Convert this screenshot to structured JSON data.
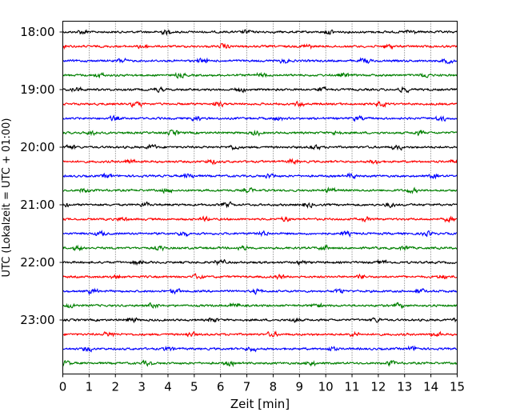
{
  "chart_data": {
    "type": "line",
    "title": "",
    "xlabel": "Zeit  [min]",
    "ylabel": "UTC (Lokalzeit = UTC + 01:00)",
    "xlim": [
      0,
      15
    ],
    "x_ticks": [
      "0",
      "1",
      "2",
      "3",
      "4",
      "5",
      "6",
      "7",
      "8",
      "9",
      "10",
      "11",
      "12",
      "13",
      "14",
      "15"
    ],
    "y_ticks": [
      "18:00",
      "19:00",
      "20:00",
      "21:00",
      "22:00",
      "23:00"
    ],
    "grid": "vertical dotted at each minute",
    "legend": "none",
    "trace_color_cycle": [
      "#000000",
      "#ff0000",
      "#0000ff",
      "#008000"
    ],
    "traces": [
      {
        "start": "18:00",
        "color": "#000000"
      },
      {
        "start": "18:15",
        "color": "#ff0000"
      },
      {
        "start": "18:30",
        "color": "#0000ff"
      },
      {
        "start": "18:45",
        "color": "#008000"
      },
      {
        "start": "19:00",
        "color": "#000000"
      },
      {
        "start": "19:15",
        "color": "#ff0000"
      },
      {
        "start": "19:30",
        "color": "#0000ff"
      },
      {
        "start": "19:45",
        "color": "#008000"
      },
      {
        "start": "20:00",
        "color": "#000000"
      },
      {
        "start": "20:15",
        "color": "#ff0000"
      },
      {
        "start": "20:30",
        "color": "#0000ff"
      },
      {
        "start": "20:45",
        "color": "#008000"
      },
      {
        "start": "21:00",
        "color": "#000000"
      },
      {
        "start": "21:15",
        "color": "#ff0000"
      },
      {
        "start": "21:30",
        "color": "#0000ff"
      },
      {
        "start": "21:45",
        "color": "#008000"
      },
      {
        "start": "22:00",
        "color": "#000000"
      },
      {
        "start": "22:15",
        "color": "#ff0000"
      },
      {
        "start": "22:30",
        "color": "#0000ff"
      },
      {
        "start": "22:45",
        "color": "#008000"
      },
      {
        "start": "23:00",
        "color": "#000000"
      },
      {
        "start": "23:15",
        "color": "#ff0000"
      },
      {
        "start": "23:30",
        "color": "#0000ff"
      },
      {
        "start": "23:45",
        "color": "#008000"
      }
    ]
  }
}
